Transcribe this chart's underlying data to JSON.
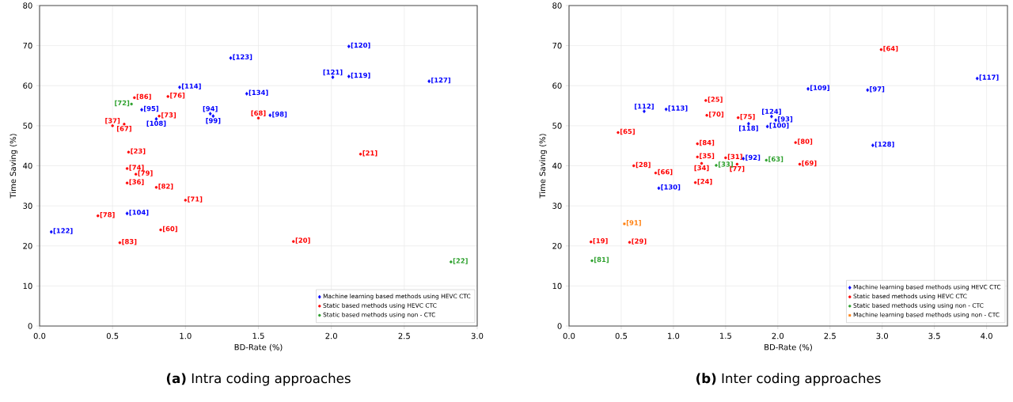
{
  "chart_data": [
    {
      "type": "scatter",
      "title": "**(a)** Intra coding approaches",
      "xlabel": "BD-Rate (%)",
      "ylabel": "Time Saving (%)",
      "xlim": [
        0,
        3.0
      ],
      "ylim": [
        0,
        80
      ],
      "xticks": [
        {
          "value": 0,
          "label": "0.0"
        },
        {
          "value": 0.5,
          "label": "0.5"
        },
        {
          "value": 1,
          "label": "1.0"
        },
        {
          "value": 1.5,
          "label": "1.5"
        },
        {
          "value": 2,
          "label": "2.0"
        },
        {
          "value": 2.5,
          "label": "2.5"
        },
        {
          "value": 3,
          "label": "3.0"
        }
      ],
      "yticks": [
        0,
        10,
        20,
        30,
        40,
        50,
        60,
        70,
        80
      ],
      "grid": true,
      "legend": "bottom right",
      "series": [
        {
          "name": "Machine learning based methods using HEVC CTC",
          "color": "#0000ff",
          "marker": "diamond",
          "x": [
            1.31,
            0.96,
            0.7,
            0.8,
            1.17,
            1.19,
            0.6,
            0.08,
            2.12,
            2.01,
            2.12,
            2.67,
            1.42,
            1.58
          ],
          "values": [
            66.9,
            59.6,
            54.0,
            51.7,
            53.0,
            52.4,
            28.1,
            23.5,
            69.8,
            62.1,
            62.3,
            61.1,
            58.0,
            52.6
          ]
        },
        {
          "name": "Static based methods using HEVC CTC",
          "color": "#ff0000",
          "marker": "circle",
          "x": [
            0.65,
            0.88,
            0.82,
            0.5,
            0.58,
            0.61,
            0.6,
            0.66,
            0.6,
            0.8,
            1.0,
            0.4,
            0.55,
            0.83,
            1.5,
            2.2,
            1.74
          ],
          "values": [
            57.0,
            57.3,
            52.4,
            50.0,
            50.4,
            43.4,
            39.3,
            37.9,
            35.7,
            34.6,
            31.4,
            27.5,
            20.8,
            24.0,
            51.9,
            42.9,
            21.1
          ]
        },
        {
          "name": "Static based methods using non - CTC",
          "color": "#2ca02c",
          "marker": "circle",
          "x": [
            0.63,
            2.82
          ],
          "values": [
            55.4,
            16.0
          ]
        }
      ],
      "annotations": [
        {
          "text": "[123]",
          "x": 1.31,
          "y": 66.9
        },
        {
          "text": "[114]",
          "x": 0.96,
          "y": 59.6
        },
        {
          "text": "[95]",
          "x": 0.7,
          "y": 54.0
        },
        {
          "text": "[108]",
          "x": 0.8,
          "y": 51.7
        },
        {
          "text": "[94]",
          "x": 1.17,
          "y": 53.0
        },
        {
          "text": "[99]",
          "x": 1.19,
          "y": 52.4
        },
        {
          "text": "[104]",
          "x": 0.6,
          "y": 28.1
        },
        {
          "text": "[122]",
          "x": 0.08,
          "y": 23.5
        },
        {
          "text": "[120]",
          "x": 2.12,
          "y": 69.8
        },
        {
          "text": "[121]",
          "x": 2.01,
          "y": 62.1
        },
        {
          "text": "[119]",
          "x": 2.12,
          "y": 62.3
        },
        {
          "text": "[127]",
          "x": 2.67,
          "y": 61.1
        },
        {
          "text": "[134]",
          "x": 1.42,
          "y": 58.0
        },
        {
          "text": "[98]",
          "x": 1.58,
          "y": 52.6
        },
        {
          "text": "[86]",
          "x": 0.65,
          "y": 57.0
        },
        {
          "text": "[76]",
          "x": 0.88,
          "y": 57.3
        },
        {
          "text": "[73]",
          "x": 0.82,
          "y": 52.4
        },
        {
          "text": "[37]",
          "x": 0.5,
          "y": 50.0
        },
        {
          "text": "[67]",
          "x": 0.58,
          "y": 50.4
        },
        {
          "text": "[23]",
          "x": 0.61,
          "y": 43.4
        },
        {
          "text": "[74]",
          "x": 0.6,
          "y": 39.3
        },
        {
          "text": "[79]",
          "x": 0.66,
          "y": 37.9
        },
        {
          "text": "[36]",
          "x": 0.6,
          "y": 35.7
        },
        {
          "text": "[82]",
          "x": 0.8,
          "y": 34.6
        },
        {
          "text": "[71]",
          "x": 1.0,
          "y": 31.4
        },
        {
          "text": "[78]",
          "x": 0.4,
          "y": 27.5
        },
        {
          "text": "[83]",
          "x": 0.55,
          "y": 20.8
        },
        {
          "text": "[60]",
          "x": 0.83,
          "y": 24.0
        },
        {
          "text": "[68]",
          "x": 1.5,
          "y": 51.9
        },
        {
          "text": "[21]",
          "x": 2.2,
          "y": 42.9
        },
        {
          "text": "[20]",
          "x": 1.74,
          "y": 21.1
        },
        {
          "text": "[72]",
          "x": 0.63,
          "y": 55.4
        },
        {
          "text": "[22]",
          "x": 2.82,
          "y": 16.0
        }
      ]
    },
    {
      "type": "scatter",
      "title": "**(b)** Inter coding approaches",
      "xlabel": "BD-Rate (%)",
      "ylabel": "Time Saving (%)",
      "xlim": [
        0,
        4.2
      ],
      "ylim": [
        0,
        80
      ],
      "xticks": [
        {
          "value": 0,
          "label": "0.0"
        },
        {
          "value": 0.5,
          "label": "0.5"
        },
        {
          "value": 1,
          "label": "1.0"
        },
        {
          "value": 1.5,
          "label": "1.5"
        },
        {
          "value": 2,
          "label": "2.0"
        },
        {
          "value": 2.5,
          "label": "2.5"
        },
        {
          "value": 3,
          "label": "3.0"
        },
        {
          "value": 3.5,
          "label": "3.5"
        },
        {
          "value": 4,
          "label": "4.0"
        }
      ],
      "yticks": [
        0,
        10,
        20,
        30,
        40,
        50,
        60,
        70,
        80
      ],
      "grid": true,
      "legend": "bottom right",
      "series": [
        {
          "name": "Machine learning based methods using HEVC CTC",
          "color": "#0000ff",
          "marker": "diamond",
          "x": [
            0.72,
            0.93,
            1.72,
            1.94,
            1.98,
            1.9,
            1.67,
            0.86,
            3.91,
            2.29,
            2.86,
            2.91
          ],
          "values": [
            53.6,
            54.1,
            50.5,
            52.3,
            51.4,
            49.8,
            41.8,
            34.4,
            61.8,
            59.2,
            58.9,
            45.1
          ]
        },
        {
          "name": "Static based methods using HEVC CTC",
          "color": "#ff0000",
          "marker": "circle",
          "x": [
            1.31,
            1.32,
            1.62,
            0.47,
            1.23,
            1.23,
            1.5,
            1.27,
            1.61,
            0.62,
            0.83,
            1.21,
            0.21,
            0.58,
            2.99,
            2.17,
            2.21
          ],
          "values": [
            56.3,
            52.6,
            52.0,
            48.3,
            45.5,
            42.2,
            42.0,
            40.6,
            40.4,
            40.0,
            38.2,
            35.8,
            21.0,
            20.9,
            69.0,
            45.8,
            40.4
          ]
        },
        {
          "name": "Static based methods using using non - CTC",
          "color": "#2ca02c",
          "marker": "circle",
          "x": [
            1.89,
            1.41,
            0.22
          ],
          "values": [
            41.4,
            40.1,
            16.3
          ]
        },
        {
          "name": "Machine learning based methods using non - CTC",
          "color": "#ff7f0e",
          "marker": "square",
          "x": [
            0.53
          ],
          "values": [
            25.5
          ]
        }
      ],
      "annotations": [
        {
          "text": "[112]",
          "x": 0.72,
          "y": 53.6
        },
        {
          "text": "[113]",
          "x": 0.93,
          "y": 54.1
        },
        {
          "text": "[118]",
          "x": 1.72,
          "y": 50.5
        },
        {
          "text": "[124]",
          "x": 1.94,
          "y": 52.3
        },
        {
          "text": "[93]",
          "x": 1.98,
          "y": 51.4
        },
        {
          "text": "[100]",
          "x": 1.9,
          "y": 49.8
        },
        {
          "text": "[92]",
          "x": 1.67,
          "y": 41.8
        },
        {
          "text": "[130]",
          "x": 0.86,
          "y": 34.4
        },
        {
          "text": "[117]",
          "x": 3.91,
          "y": 61.8
        },
        {
          "text": "[109]",
          "x": 2.29,
          "y": 59.2
        },
        {
          "text": "[97]",
          "x": 2.86,
          "y": 58.9
        },
        {
          "text": "[128]",
          "x": 2.91,
          "y": 45.1
        },
        {
          "text": "[25]",
          "x": 1.31,
          "y": 56.3
        },
        {
          "text": "[70]",
          "x": 1.32,
          "y": 52.6
        },
        {
          "text": "[75]",
          "x": 1.62,
          "y": 52.0
        },
        {
          "text": "[65]",
          "x": 0.47,
          "y": 48.3
        },
        {
          "text": "[84]",
          "x": 1.23,
          "y": 45.5
        },
        {
          "text": "[35]",
          "x": 1.23,
          "y": 42.2
        },
        {
          "text": "[31]",
          "x": 1.5,
          "y": 42.0
        },
        {
          "text": "[34]",
          "x": 1.27,
          "y": 40.6
        },
        {
          "text": "[77]",
          "x": 1.61,
          "y": 40.4
        },
        {
          "text": "[28]",
          "x": 0.62,
          "y": 40.0
        },
        {
          "text": "[66]",
          "x": 0.83,
          "y": 38.2
        },
        {
          "text": "[24]",
          "x": 1.21,
          "y": 35.8
        },
        {
          "text": "[19]",
          "x": 0.21,
          "y": 21.0
        },
        {
          "text": "[29]",
          "x": 0.58,
          "y": 20.9
        },
        {
          "text": "[64]",
          "x": 2.99,
          "y": 69.0
        },
        {
          "text": "[80]",
          "x": 2.17,
          "y": 45.8
        },
        {
          "text": "[69]",
          "x": 2.21,
          "y": 40.4
        },
        {
          "text": "[63]",
          "x": 1.89,
          "y": 41.4
        },
        {
          "text": "[33]",
          "x": 1.41,
          "y": 40.1
        },
        {
          "text": "[81]",
          "x": 0.22,
          "y": 16.3
        },
        {
          "text": "[91]",
          "x": 0.53,
          "y": 25.5
        }
      ]
    }
  ]
}
